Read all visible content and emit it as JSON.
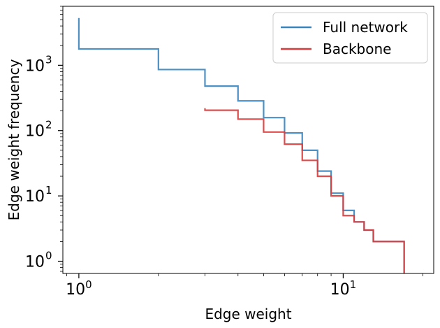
{
  "chart_data": {
    "type": "line",
    "xlabel": "Edge weight",
    "ylabel": "Edge weight frequency",
    "xscale": "log",
    "yscale": "log",
    "xlim": [
      0.87,
      22
    ],
    "ylim": [
      0.65,
      8000
    ],
    "grid": false,
    "legend_position": "top-right",
    "x_ticks": [
      {
        "value": 1,
        "base": "10",
        "exp": "0"
      },
      {
        "value": 10,
        "base": "10",
        "exp": "1"
      }
    ],
    "y_ticks": [
      {
        "value": 1,
        "base": "10",
        "exp": "0"
      },
      {
        "value": 10,
        "base": "10",
        "exp": "1"
      },
      {
        "value": 100,
        "base": "10",
        "exp": "2"
      },
      {
        "value": 1000,
        "base": "10",
        "exp": "3"
      }
    ],
    "series": [
      {
        "name": "Full network",
        "color": "#3a84bd",
        "step": "post",
        "points": [
          {
            "x": 1,
            "y": 5300
          },
          {
            "x": 1,
            "y": 1780
          },
          {
            "x": 2,
            "y": 860
          },
          {
            "x": 3,
            "y": 480
          },
          {
            "x": 4,
            "y": 285
          },
          {
            "x": 5,
            "y": 158
          },
          {
            "x": 6,
            "y": 92
          },
          {
            "x": 7,
            "y": 50
          },
          {
            "x": 8,
            "y": 24
          },
          {
            "x": 9,
            "y": 11
          },
          {
            "x": 10,
            "y": 6
          },
          {
            "x": 11,
            "y": 4
          },
          {
            "x": 12,
            "y": 3
          },
          {
            "x": 13,
            "y": 2
          },
          {
            "x": 17,
            "y": 1
          },
          {
            "x": 17,
            "y": 0.65
          }
        ]
      },
      {
        "name": "Backbone",
        "color": "#d83b3b",
        "step": "post",
        "points": [
          {
            "x": 3,
            "y": 220
          },
          {
            "x": 3,
            "y": 205
          },
          {
            "x": 4,
            "y": 150
          },
          {
            "x": 5,
            "y": 95
          },
          {
            "x": 6,
            "y": 62
          },
          {
            "x": 7,
            "y": 35
          },
          {
            "x": 8,
            "y": 20
          },
          {
            "x": 9,
            "y": 10
          },
          {
            "x": 10,
            "y": 5
          },
          {
            "x": 11,
            "y": 4
          },
          {
            "x": 12,
            "y": 3
          },
          {
            "x": 13,
            "y": 2
          },
          {
            "x": 17,
            "y": 1
          },
          {
            "x": 17,
            "y": 0.65
          }
        ]
      }
    ]
  }
}
